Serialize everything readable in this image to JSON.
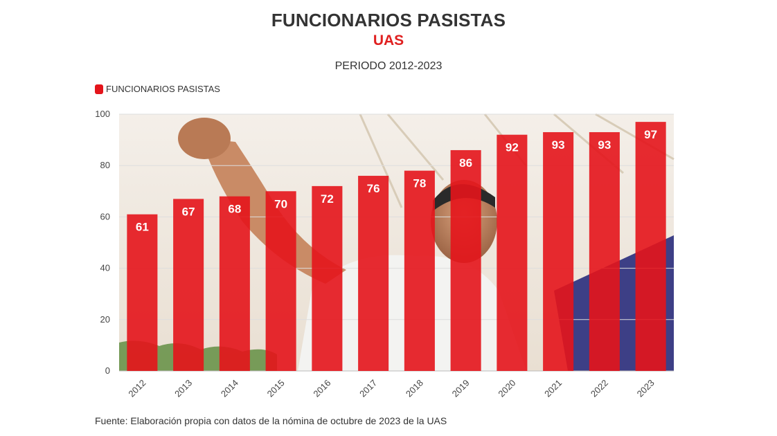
{
  "header": {
    "title": "FUNCIONARIOS PASISTAS",
    "subtitle": "UAS",
    "period": "PERIODO 2012-2023"
  },
  "legend": {
    "label": "FUNCIONARIOS PASISTAS",
    "position": "top-left"
  },
  "footer": {
    "source": "Fuente: Elaboración propia con datos de la nómina de octubre de 2023 de la UAS"
  },
  "colors": {
    "bar": "#e4141b",
    "title": "#333333",
    "subtitle": "#e02020",
    "grid": "#dddddd",
    "data_label": "#ffffff"
  },
  "chart_data": {
    "type": "bar",
    "categories": [
      "2012",
      "2013",
      "2014",
      "2015",
      "2016",
      "2017",
      "2018",
      "2019",
      "2020",
      "2021",
      "2022",
      "2023"
    ],
    "series": [
      {
        "name": "FUNCIONARIOS PASISTAS",
        "values": [
          61,
          67,
          68,
          70,
          72,
          76,
          78,
          86,
          92,
          93,
          93,
          97
        ]
      }
    ],
    "ylim": [
      0,
      100
    ],
    "yticks": [
      0,
      20,
      40,
      60,
      80,
      100
    ],
    "grid": true,
    "data_labels": true,
    "background": "photo"
  }
}
